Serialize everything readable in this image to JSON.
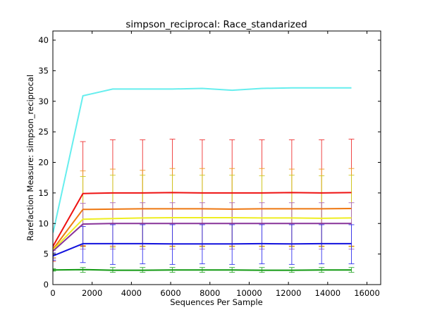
{
  "chart_data": {
    "type": "line",
    "title": "simpson_reciprocal: Race_standarized",
    "xlabel": "Sequences Per Sample",
    "ylabel": "Rarefaction Measure: simpson_reciprocal",
    "xlim": [
      0,
      16700
    ],
    "ylim": [
      0,
      41.5
    ],
    "xticks": [
      0,
      2000,
      4000,
      6000,
      8000,
      10000,
      12000,
      14000,
      16000
    ],
    "yticks": [
      0,
      5,
      10,
      15,
      20,
      25,
      30,
      35,
      40
    ],
    "grid": false,
    "x": [
      10,
      1530,
      3050,
      4570,
      6090,
      7610,
      9130,
      10650,
      12170,
      13690,
      15210
    ],
    "series": [
      {
        "color": "#66eeee",
        "values": [
          8.5,
          30.9,
          32.0,
          32.0,
          32.0,
          32.1,
          31.8,
          32.1,
          32.2,
          32.2,
          32.2
        ],
        "err": null
      },
      {
        "color": "#ee1111",
        "values": [
          6.3,
          14.9,
          15.0,
          15.0,
          15.05,
          15.0,
          15.0,
          15.0,
          15.05,
          15.0,
          15.05
        ],
        "err": [
          [
            3.8,
            6.2
          ],
          [
            6.3,
            23.4
          ],
          [
            6.3,
            23.7
          ],
          [
            6.3,
            23.7
          ],
          [
            6.3,
            23.8
          ],
          [
            6.3,
            23.7
          ],
          [
            6.3,
            23.7
          ],
          [
            6.3,
            23.7
          ],
          [
            6.3,
            23.7
          ],
          [
            6.3,
            23.7
          ],
          [
            6.3,
            23.8
          ]
        ],
        "err_color": "#ee3333"
      },
      {
        "color": "#ee7711",
        "values": [
          5.8,
          12.3,
          12.35,
          12.4,
          12.4,
          12.4,
          12.35,
          12.4,
          12.4,
          12.4,
          12.45
        ],
        "err": [
          [
            4.4,
            6.0
          ],
          [
            6.4,
            18.6
          ],
          [
            6.3,
            18.9
          ],
          [
            6.3,
            18.7
          ],
          [
            6.3,
            19.0
          ],
          [
            6.3,
            19.0
          ],
          [
            6.3,
            19.0
          ],
          [
            6.3,
            19.0
          ],
          [
            6.3,
            18.9
          ],
          [
            6.3,
            18.9
          ],
          [
            6.3,
            19.0
          ]
        ],
        "err_color": "#ee9922"
      },
      {
        "color": "#eeee22",
        "values": [
          5.7,
          10.7,
          10.8,
          10.9,
          10.95,
          10.95,
          10.95,
          10.9,
          10.9,
          10.85,
          10.9
        ],
        "err": [
          [
            4.4,
            5.9
          ],
          [
            6.2,
            17.7
          ],
          [
            6.1,
            17.9
          ],
          [
            6.2,
            17.9
          ],
          [
            6.2,
            17.9
          ],
          [
            6.2,
            17.9
          ],
          [
            6.2,
            17.9
          ],
          [
            6.2,
            17.8
          ],
          [
            6.2,
            17.9
          ],
          [
            6.2,
            17.8
          ],
          [
            6.2,
            17.9
          ]
        ],
        "err_color": "#cccc22"
      },
      {
        "color": "#883399",
        "values": [
          5.5,
          9.9,
          10.0,
          10.0,
          10.0,
          10.0,
          10.0,
          10.0,
          10.0,
          10.0,
          10.0
        ],
        "err": [
          [
            4.3,
            5.6
          ],
          [
            5.8,
            13.3
          ],
          [
            5.8,
            13.4
          ],
          [
            5.8,
            13.4
          ],
          [
            5.8,
            13.4
          ],
          [
            5.8,
            13.4
          ],
          [
            5.8,
            13.4
          ],
          [
            5.8,
            13.4
          ],
          [
            5.8,
            13.4
          ],
          [
            5.8,
            13.4
          ],
          [
            5.8,
            13.4
          ]
        ],
        "err_color": "#aa66bb"
      },
      {
        "color": "#1111dd",
        "values": [
          4.7,
          6.7,
          6.7,
          6.7,
          6.65,
          6.65,
          6.65,
          6.7,
          6.65,
          6.7,
          6.7
        ],
        "err": [
          [
            4.0,
            5.2
          ],
          [
            3.6,
            9.5
          ],
          [
            3.3,
            9.8
          ],
          [
            3.4,
            9.8
          ],
          [
            3.3,
            9.8
          ],
          [
            3.4,
            9.8
          ],
          [
            3.3,
            9.8
          ],
          [
            3.4,
            9.8
          ],
          [
            3.3,
            9.8
          ],
          [
            3.4,
            9.8
          ],
          [
            3.4,
            9.8
          ]
        ],
        "err_color": "#3333ee"
      },
      {
        "color": "#119911",
        "values": [
          2.4,
          2.45,
          2.35,
          2.35,
          2.4,
          2.4,
          2.4,
          2.35,
          2.35,
          2.4,
          2.4
        ],
        "err": [
          [
            2.2,
            2.6
          ],
          [
            2.0,
            2.8
          ],
          [
            2.0,
            2.8
          ],
          [
            2.0,
            2.8
          ],
          [
            2.0,
            2.8
          ],
          [
            2.0,
            2.8
          ],
          [
            2.0,
            2.8
          ],
          [
            2.0,
            2.8
          ],
          [
            2.0,
            2.8
          ],
          [
            2.0,
            2.8
          ],
          [
            2.0,
            2.8
          ]
        ],
        "err_color": "#33aa33"
      }
    ]
  }
}
